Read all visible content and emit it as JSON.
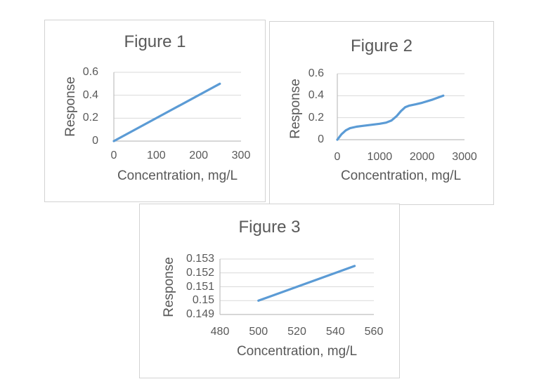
{
  "colors": {
    "line": "#5B9BD5",
    "grid": "#D9D9D9",
    "axis": "#BFBFBF",
    "text": "#595959",
    "panel_border": "#D2D2D2",
    "background": "#FFFFFF"
  },
  "chart_data": [
    {
      "type": "line",
      "title": "Figure 1",
      "xlabel": "Concentration, mg/L",
      "ylabel": "Response",
      "xlim": [
        0,
        300
      ],
      "ylim": [
        0,
        0.6
      ],
      "xticks": [
        0,
        100,
        200,
        300
      ],
      "xtick_labels": [
        "0",
        "100",
        "200",
        "300"
      ],
      "yticks": [
        0,
        0.2,
        0.4,
        0.6
      ],
      "ytick_labels": [
        "0",
        "0.2",
        "0.4",
        "0.6"
      ],
      "grid": "horizontal",
      "legend": "none",
      "series": [
        {
          "name": "Response",
          "color": "#5B9BD5",
          "points": [
            [
              0,
              0
            ],
            [
              250,
              0.5
            ]
          ]
        }
      ]
    },
    {
      "type": "line",
      "title": "Figure 2",
      "xlabel": "Concentration, mg/L",
      "ylabel": "Response",
      "xlim": [
        0,
        3000
      ],
      "ylim": [
        0,
        0.6
      ],
      "xticks": [
        0,
        1000,
        2000,
        3000
      ],
      "xtick_labels": [
        "0",
        "1000",
        "2000",
        "3000"
      ],
      "yticks": [
        0,
        0.2,
        0.4,
        0.6
      ],
      "ytick_labels": [
        "0",
        "0.2",
        "0.4",
        "0.6"
      ],
      "grid": "horizontal",
      "legend": "none",
      "series": [
        {
          "name": "Response",
          "color": "#5B9BD5",
          "points": [
            [
              0,
              0
            ],
            [
              100,
              0.05
            ],
            [
              200,
              0.085
            ],
            [
              300,
              0.105
            ],
            [
              450,
              0.118
            ],
            [
              600,
              0.126
            ],
            [
              800,
              0.135
            ],
            [
              1000,
              0.145
            ],
            [
              1150,
              0.155
            ],
            [
              1280,
              0.175
            ],
            [
              1400,
              0.215
            ],
            [
              1500,
              0.26
            ],
            [
              1600,
              0.295
            ],
            [
              1700,
              0.31
            ],
            [
              1850,
              0.322
            ],
            [
              2000,
              0.336
            ],
            [
              2250,
              0.365
            ],
            [
              2500,
              0.4
            ]
          ]
        }
      ]
    },
    {
      "type": "line",
      "title": "Figure 3",
      "xlabel": "Concentration, mg/L",
      "ylabel": "Response",
      "xlim": [
        480,
        560
      ],
      "ylim": [
        0.149,
        0.153
      ],
      "xticks": [
        480,
        500,
        520,
        540,
        560
      ],
      "xtick_labels": [
        "480",
        "500",
        "520",
        "540",
        "560"
      ],
      "yticks": [
        0.149,
        0.15,
        0.151,
        0.152,
        0.153
      ],
      "ytick_labels": [
        "0.149",
        "0.15",
        "0.151",
        "0.152",
        "0.153"
      ],
      "grid": "horizontal",
      "legend": "none",
      "series": [
        {
          "name": "Response",
          "color": "#5B9BD5",
          "points": [
            [
              500,
              0.15
            ],
            [
              550,
              0.1525
            ]
          ]
        }
      ]
    }
  ]
}
